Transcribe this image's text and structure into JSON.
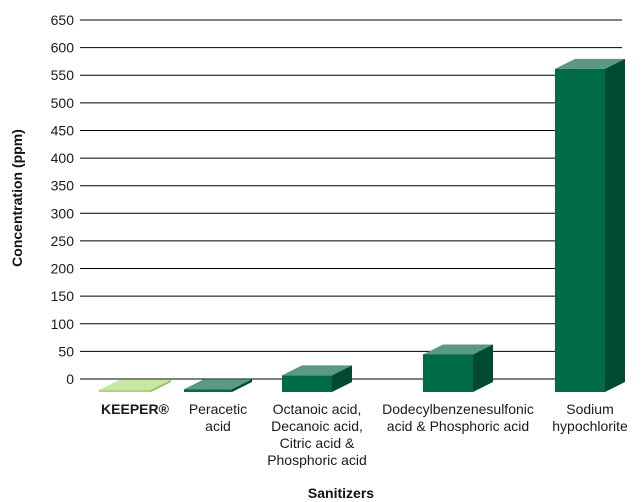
{
  "chart_data": {
    "type": "bar",
    "title": "",
    "xlabel": "Sanitizers",
    "ylabel": "Concentration (ppm)",
    "ylim": [
      0,
      650
    ],
    "yticks": [
      0,
      50,
      100,
      150,
      200,
      250,
      300,
      350,
      400,
      450,
      500,
      550,
      600,
      650
    ],
    "grid": true,
    "categories": [
      [
        "KEEPER®"
      ],
      [
        "Peracetic",
        "acid"
      ],
      [
        "Octanoic acid,",
        "Decanoic acid,",
        "Citric acid &",
        "Phosphoric acid"
      ],
      [
        "Dodecylbenzenesulfonic",
        "acid & Phosphoric acid"
      ],
      [
        "Sodium",
        "hypochlorite"
      ]
    ],
    "values": [
      0,
      5,
      30,
      68,
      585
    ],
    "colors": {
      "keeper": "#a8d878",
      "keeper_top": "#c8e8a0",
      "keeper_side": "#8cc060",
      "bar": "#006b48",
      "bar_top": "#5a9a82",
      "bar_side": "#004a32"
    },
    "bold_first_category": true
  }
}
